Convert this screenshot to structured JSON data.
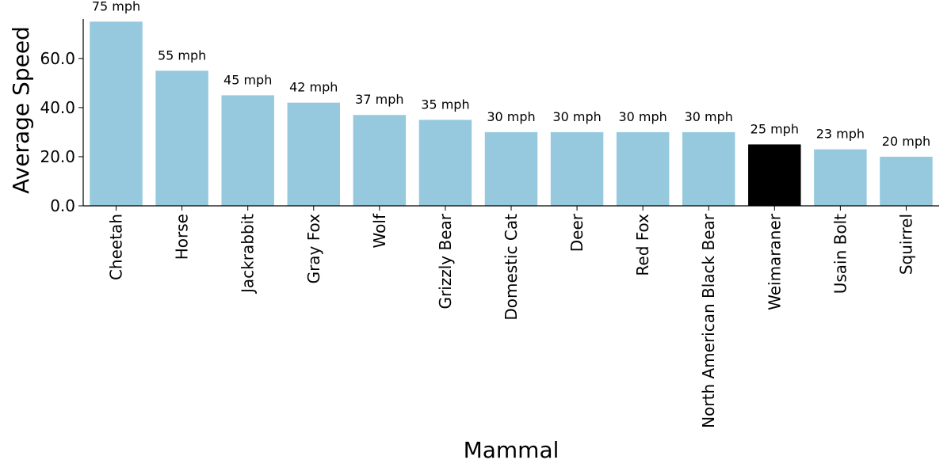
{
  "chart_data": {
    "type": "bar",
    "xlabel": "Mammal",
    "ylabel": "Average Speed",
    "ylim": [
      0,
      78
    ],
    "yticks": [
      0,
      20,
      40,
      60
    ],
    "ytick_labels": [
      "0.0",
      "20.0",
      "40.0",
      "60.0"
    ],
    "grid": false,
    "legend": "none",
    "categories": [
      "Cheetah",
      "Horse",
      "Jackrabbit",
      "Gray Fox",
      "Wolf",
      "Grizzly Bear",
      "Domestic Cat",
      "Deer",
      "Red Fox",
      "North American Black Bear",
      "Weimaraner",
      "Usain Bolt",
      "Squirrel"
    ],
    "values": [
      75,
      55,
      45,
      42,
      37,
      35,
      30,
      30,
      30,
      30,
      25,
      23,
      20
    ],
    "data_labels": [
      "75 mph",
      "55 mph",
      "45 mph",
      "42 mph",
      "37 mph",
      "35 mph",
      "30 mph",
      "30 mph",
      "30 mph",
      "30 mph",
      "25 mph",
      "23 mph",
      "20 mph"
    ],
    "colors": {
      "default": "#96c9de",
      "highlight": "#000000",
      "highlight_category": "Weimaraner"
    }
  }
}
